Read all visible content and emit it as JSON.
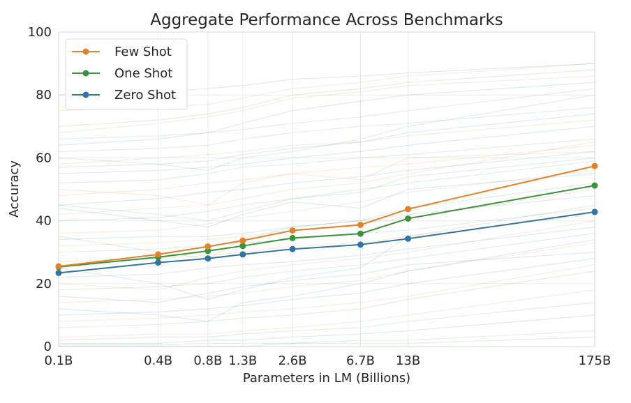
{
  "chart_data": {
    "type": "line",
    "title": "Aggregate Performance Across Benchmarks",
    "xlabel": "Parameters in LM (Billions)",
    "ylabel": "Accuracy",
    "x_scale": "log",
    "x": [
      0.1,
      0.4,
      0.8,
      1.3,
      2.6,
      6.7,
      13,
      175
    ],
    "x_tick_labels": [
      "0.1B",
      "0.4B",
      "0.8B",
      "1.3B",
      "2.6B",
      "6.7B",
      "13B",
      "175B"
    ],
    "ylim": [
      0,
      100
    ],
    "y_ticks": [
      0,
      20,
      40,
      60,
      80,
      100
    ],
    "grid": true,
    "legend_position": "top-left",
    "series": [
      {
        "name": "Few Shot",
        "color": "#e1812c",
        "values": [
          25.5,
          29.3,
          31.8,
          33.7,
          36.9,
          38.7,
          43.7,
          57.4
        ]
      },
      {
        "name": "One Shot",
        "color": "#3a923a",
        "values": [
          25.3,
          28.4,
          30.4,
          32.0,
          34.5,
          35.9,
          40.7,
          51.2
        ]
      },
      {
        "name": "Zero Shot",
        "color": "#3274a1",
        "values": [
          23.4,
          26.7,
          28.0,
          29.3,
          31.0,
          32.4,
          34.3,
          42.8
        ]
      }
    ],
    "background_series": [
      {
        "color": "#3a923a",
        "values": [
          70,
          72,
          74,
          76,
          80,
          82,
          84,
          88
        ]
      },
      {
        "color": "#e1812c",
        "values": [
          68,
          71,
          73,
          75,
          79,
          81,
          83,
          86
        ]
      },
      {
        "color": "#3274a1",
        "values": [
          64,
          66,
          68,
          71,
          75,
          78,
          80,
          84
        ]
      },
      {
        "color": "#3a923a",
        "values": [
          62,
          63,
          64,
          66,
          68,
          70,
          71,
          76
        ]
      },
      {
        "color": "#e1812c",
        "values": [
          58,
          60,
          61,
          62,
          64,
          65,
          67,
          72
        ]
      },
      {
        "color": "#3274a1",
        "values": [
          55,
          56,
          57,
          58,
          60,
          62,
          64,
          70
        ]
      },
      {
        "color": "#3a923a",
        "values": [
          52,
          53,
          55,
          57,
          58,
          60,
          61,
          66
        ]
      },
      {
        "color": "#e1812c",
        "values": [
          48,
          50,
          52,
          53,
          55,
          57,
          58,
          64
        ]
      },
      {
        "color": "#3274a1",
        "values": [
          45,
          47,
          49,
          50,
          52,
          54,
          56,
          62
        ]
      },
      {
        "color": "#3a923a",
        "values": [
          40,
          41,
          43,
          45,
          47,
          50,
          52,
          59
        ]
      },
      {
        "color": "#e1812c",
        "values": [
          36,
          37,
          39,
          41,
          43,
          46,
          49,
          56
        ]
      },
      {
        "color": "#3274a1",
        "values": [
          34,
          35,
          35,
          36,
          38,
          40,
          42,
          48
        ]
      },
      {
        "color": "#3a923a",
        "values": [
          30,
          31,
          32,
          33,
          34,
          36,
          37,
          44
        ]
      },
      {
        "color": "#e1812c",
        "values": [
          27,
          28,
          29,
          30,
          32,
          33,
          35,
          42
        ]
      },
      {
        "color": "#3274a1",
        "values": [
          22,
          23,
          25,
          26,
          27,
          29,
          31,
          38
        ]
      },
      {
        "color": "#3a923a",
        "values": [
          18,
          19,
          20,
          22,
          24,
          26,
          28,
          36
        ]
      },
      {
        "color": "#e1812c",
        "values": [
          14,
          15,
          16,
          17,
          19,
          21,
          24,
          33
        ]
      },
      {
        "color": "#3274a1",
        "values": [
          10,
          11,
          12,
          13,
          15,
          17,
          20,
          28
        ]
      },
      {
        "color": "#3a923a",
        "values": [
          6,
          7,
          8,
          9,
          10,
          12,
          15,
          24
        ]
      },
      {
        "color": "#e1812c",
        "values": [
          3,
          4,
          4,
          5,
          6,
          8,
          10,
          18
        ]
      },
      {
        "color": "#3274a1",
        "values": [
          1,
          1,
          2,
          2,
          3,
          4,
          5,
          10
        ]
      },
      {
        "color": "#3a923a",
        "values": [
          0.5,
          0.5,
          1,
          1,
          1,
          2,
          2,
          5
        ]
      },
      {
        "color": "#e1812c",
        "values": [
          50,
          48,
          45,
          52,
          55,
          53,
          60,
          62
        ]
      },
      {
        "color": "#3274a1",
        "values": [
          44,
          40,
          38,
          42,
          46,
          44,
          50,
          55
        ]
      },
      {
        "color": "#3a923a",
        "values": [
          35,
          30,
          28,
          34,
          38,
          40,
          44,
          52
        ]
      },
      {
        "color": "#e1812c",
        "values": [
          20,
          18,
          22,
          24,
          26,
          28,
          30,
          40
        ]
      },
      {
        "color": "#3274a1",
        "values": [
          12,
          10,
          8,
          14,
          16,
          20,
          24,
          34
        ]
      },
      {
        "color": "#3a923a",
        "values": [
          60,
          58,
          56,
          60,
          62,
          66,
          70,
          80
        ]
      },
      {
        "color": "#e1812c",
        "values": [
          75,
          76,
          77,
          79,
          82,
          84,
          86,
          90
        ]
      },
      {
        "color": "#3274a1",
        "values": [
          80,
          81,
          82,
          83,
          85,
          86,
          87,
          90
        ]
      },
      {
        "color": "#3a923a",
        "values": [
          2,
          3,
          3,
          4,
          5,
          6,
          8,
          14
        ]
      },
      {
        "color": "#e1812c",
        "values": [
          8,
          9,
          10,
          11,
          12,
          14,
          16,
          26
        ]
      },
      {
        "color": "#3274a1",
        "values": [
          25,
          20,
          15,
          18,
          22,
          25,
          35,
          45
        ]
      },
      {
        "color": "#3a923a",
        "values": [
          45,
          42,
          40,
          43,
          47,
          49,
          54,
          60
        ]
      },
      {
        "color": "#e1812c",
        "values": [
          32,
          33,
          34,
          35,
          37,
          39,
          41,
          50
        ]
      },
      {
        "color": "#3274a1",
        "values": [
          57,
          58,
          59,
          61,
          63,
          65,
          68,
          74
        ]
      },
      {
        "color": "#3a923a",
        "values": [
          66,
          67,
          68,
          69,
          71,
          73,
          75,
          82
        ]
      },
      {
        "color": "#e1812c",
        "values": [
          42,
          44,
          45,
          47,
          50,
          52,
          55,
          65
        ]
      },
      {
        "color": "#3274a1",
        "values": [
          16,
          14,
          17,
          19,
          21,
          23,
          26,
          30
        ]
      },
      {
        "color": "#3a923a",
        "values": [
          0,
          0,
          0,
          0,
          1,
          1,
          1,
          3
        ]
      }
    ]
  }
}
